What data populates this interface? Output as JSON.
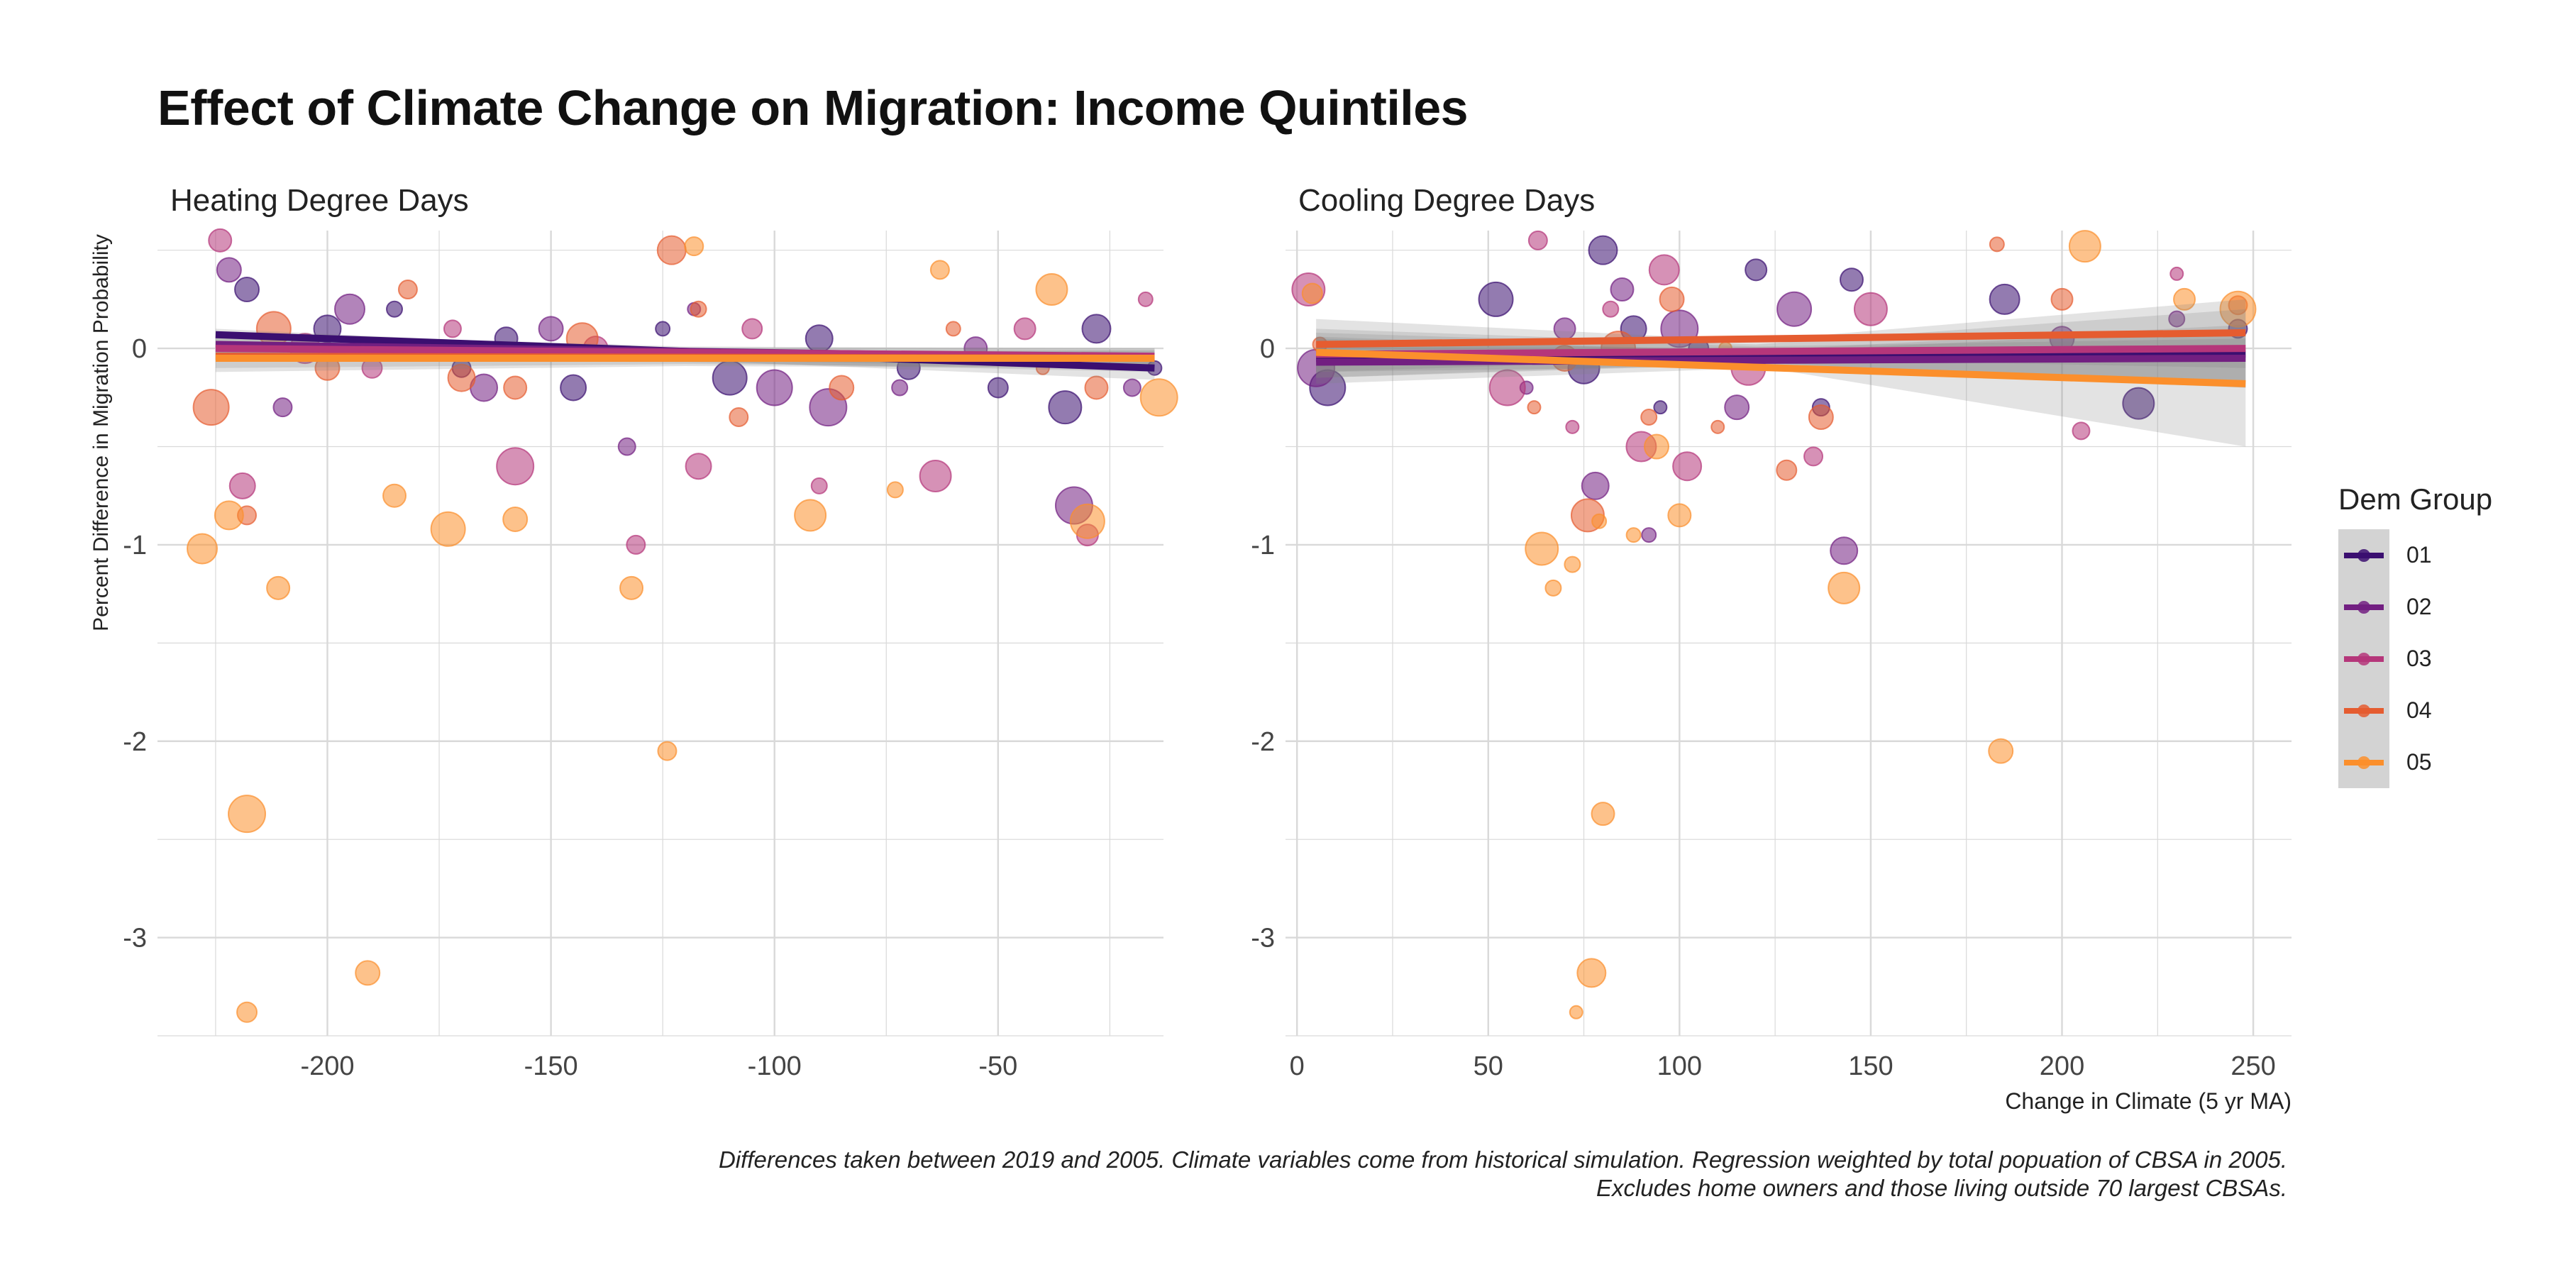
{
  "title": "Effect of Climate Change on Migration: Income Quintiles",
  "caption_lines": [
    "Differences taken between 2019 and 2005. Climate variables come from historical simulation. Regression weighted by total popuation of CBSA in 2005.",
    "Excludes home owners and those living outside 70 largest CBSAs."
  ],
  "y_axis_label": "Percent Difference in Migration Probability",
  "x_axis_label": "Change in Climate (5 yr MA)",
  "legend": {
    "title": "Dem Group",
    "items": [
      {
        "label": "01",
        "color": "#3b0f70"
      },
      {
        "label": "02",
        "color": "#721f81"
      },
      {
        "label": "03",
        "color": "#b5367a"
      },
      {
        "label": "04",
        "color": "#e55c30"
      },
      {
        "label": "05",
        "color": "#fb8f2c"
      }
    ]
  },
  "chart_data": [
    {
      "type": "scatter",
      "title": "Heating Degree Days",
      "xlim": [
        -238,
        -13
      ],
      "ylim": [
        -3.5,
        0.6
      ],
      "x_ticks": [
        -200,
        -150,
        -100,
        -50
      ],
      "y_ticks": [
        0,
        -1,
        -2,
        -3
      ],
      "grid": true,
      "series": [
        {
          "name": "01",
          "color": "#3b0f70",
          "fit": [
            [
              -225,
              0.07
            ],
            [
              -15,
              -0.1
            ]
          ],
          "band": [
            [
              -225,
              0.1,
              -0.04
            ],
            [
              -120,
              -0.01,
              -0.06
            ],
            [
              -15,
              -0.06,
              -0.16
            ]
          ],
          "points": [
            [
              -218,
              0.3
            ],
            [
              -200,
              0.1
            ],
            [
              -185,
              0.2
            ],
            [
              -170,
              -0.1
            ],
            [
              -160,
              0.05
            ],
            [
              -145,
              -0.2
            ],
            [
              -125,
              0.1
            ],
            [
              -110,
              -0.15
            ],
            [
              -90,
              0.05
            ],
            [
              -70,
              -0.1
            ],
            [
              -50,
              -0.2
            ],
            [
              -35,
              -0.3
            ],
            [
              -28,
              0.1
            ],
            [
              -15,
              -0.1
            ]
          ]
        },
        {
          "name": "02",
          "color": "#721f81",
          "fit": [
            [
              -225,
              0.02
            ],
            [
              -15,
              -0.05
            ]
          ],
          "band": [
            [
              -225,
              0.08,
              -0.06
            ],
            [
              -120,
              0.01,
              -0.07
            ],
            [
              -15,
              0.0,
              -0.12
            ]
          ],
          "points": [
            [
              -222,
              0.4
            ],
            [
              -210,
              -0.3
            ],
            [
              -195,
              0.2
            ],
            [
              -180,
              0.0
            ],
            [
              -165,
              -0.2
            ],
            [
              -150,
              0.1
            ],
            [
              -133,
              -0.5
            ],
            [
              -118,
              0.2
            ],
            [
              -100,
              -0.2
            ],
            [
              -88,
              -0.3
            ],
            [
              -72,
              -0.2
            ],
            [
              -55,
              0.0
            ],
            [
              -33,
              -0.8
            ],
            [
              -20,
              -0.2
            ]
          ]
        },
        {
          "name": "03",
          "color": "#b5367a",
          "fit": [
            [
              -225,
              0.0
            ],
            [
              -15,
              -0.04
            ]
          ],
          "band": [
            [
              -225,
              0.06,
              -0.06
            ],
            [
              -120,
              0.0,
              -0.06
            ],
            [
              -15,
              0.0,
              -0.1
            ]
          ],
          "points": [
            [
              -224,
              0.55
            ],
            [
              -219,
              -0.7
            ],
            [
              -205,
              0.0
            ],
            [
              -190,
              -0.1
            ],
            [
              -172,
              0.1
            ],
            [
              -158,
              -0.6
            ],
            [
              -140,
              0.0
            ],
            [
              -131,
              -1.0
            ],
            [
              -117,
              -0.6
            ],
            [
              -105,
              0.1
            ],
            [
              -90,
              -0.7
            ],
            [
              -64,
              -0.65
            ],
            [
              -44,
              0.1
            ],
            [
              -30,
              -0.95
            ],
            [
              -17,
              0.25
            ]
          ]
        },
        {
          "name": "04",
          "color": "#e55c30",
          "fit": [
            [
              -225,
              -0.04
            ],
            [
              -15,
              -0.05
            ]
          ],
          "band": [
            [
              -225,
              0.02,
              -0.1
            ],
            [
              -120,
              -0.01,
              -0.08
            ],
            [
              -15,
              -0.01,
              -0.1
            ]
          ],
          "points": [
            [
              -226,
              -0.3
            ],
            [
              -218,
              -0.85
            ],
            [
              -212,
              0.1
            ],
            [
              -200,
              -0.1
            ],
            [
              -182,
              0.3
            ],
            [
              -170,
              -0.15
            ],
            [
              -158,
              -0.2
            ],
            [
              -143,
              0.05
            ],
            [
              -123,
              0.5
            ],
            [
              -117,
              0.2
            ],
            [
              -108,
              -0.35
            ],
            [
              -85,
              -0.2
            ],
            [
              -60,
              0.1
            ],
            [
              -40,
              -0.1
            ],
            [
              -28,
              -0.2
            ]
          ]
        },
        {
          "name": "05",
          "color": "#fb8f2c",
          "fit": [
            [
              -225,
              -0.05
            ],
            [
              -15,
              -0.05
            ]
          ],
          "band": [
            [
              -225,
              0.01,
              -0.12
            ],
            [
              -120,
              -0.02,
              -0.09
            ],
            [
              -15,
              -0.01,
              -0.1
            ]
          ],
          "points": [
            [
              -228,
              -1.02
            ],
            [
              -222,
              -0.85
            ],
            [
              -218,
              -2.37
            ],
            [
              -218,
              -3.38
            ],
            [
              -211,
              -1.22
            ],
            [
              -191,
              -3.18
            ],
            [
              -185,
              -0.75
            ],
            [
              -173,
              -0.92
            ],
            [
              -158,
              -0.87
            ],
            [
              -132,
              -1.22
            ],
            [
              -124,
              -2.05
            ],
            [
              -118,
              0.52
            ],
            [
              -92,
              -0.85
            ],
            [
              -73,
              -0.72
            ],
            [
              -63,
              0.4
            ],
            [
              -38,
              0.3
            ],
            [
              -30,
              -0.88
            ],
            [
              -14,
              -0.25
            ]
          ]
        }
      ]
    },
    {
      "type": "scatter",
      "title": "Cooling Degree Days",
      "xlim": [
        -3,
        260
      ],
      "ylim": [
        -3.5,
        0.6
      ],
      "x_ticks": [
        0,
        50,
        100,
        150,
        200,
        250
      ],
      "y_ticks": [
        0,
        -1,
        -2,
        -3
      ],
      "grid": true,
      "series": [
        {
          "name": "01",
          "color": "#3b0f70",
          "fit": [
            [
              5,
              -0.05
            ],
            [
              248,
              -0.03
            ]
          ],
          "band": [
            [
              5,
              0.05,
              -0.15
            ],
            [
              120,
              -0.01,
              -0.08
            ],
            [
              248,
              0.12,
              -0.18
            ]
          ],
          "points": [
            [
              8,
              -0.2
            ],
            [
              52,
              0.25
            ],
            [
              75,
              -0.1
            ],
            [
              80,
              0.5
            ],
            [
              88,
              0.1
            ],
            [
              95,
              -0.3
            ],
            [
              105,
              0.0
            ],
            [
              120,
              0.4
            ],
            [
              137,
              -0.3
            ],
            [
              145,
              0.35
            ],
            [
              185,
              0.25
            ],
            [
              220,
              -0.28
            ],
            [
              246,
              0.1
            ]
          ]
        },
        {
          "name": "02",
          "color": "#721f81",
          "fit": [
            [
              5,
              -0.07
            ],
            [
              248,
              -0.05
            ]
          ],
          "band": [
            [
              5,
              0.06,
              -0.18
            ],
            [
              120,
              -0.02,
              -0.1
            ],
            [
              248,
              0.1,
              -0.2
            ]
          ],
          "points": [
            [
              5,
              -0.1
            ],
            [
              60,
              -0.2
            ],
            [
              70,
              0.1
            ],
            [
              78,
              -0.7
            ],
            [
              85,
              0.3
            ],
            [
              92,
              -0.95
            ],
            [
              100,
              0.1
            ],
            [
              115,
              -0.3
            ],
            [
              130,
              0.2
            ],
            [
              143,
              -1.03
            ],
            [
              200,
              0.05
            ],
            [
              230,
              0.15
            ]
          ]
        },
        {
          "name": "03",
          "color": "#b5367a",
          "fit": [
            [
              5,
              -0.03
            ],
            [
              248,
              0.0
            ]
          ],
          "band": [
            [
              5,
              0.1,
              -0.15
            ],
            [
              120,
              0.02,
              -0.07
            ],
            [
              248,
              0.2,
              -0.2
            ]
          ],
          "points": [
            [
              3,
              0.3
            ],
            [
              55,
              -0.2
            ],
            [
              63,
              0.55
            ],
            [
              72,
              -0.4
            ],
            [
              82,
              0.2
            ],
            [
              90,
              -0.5
            ],
            [
              96,
              0.4
            ],
            [
              102,
              -0.6
            ],
            [
              118,
              -0.1
            ],
            [
              135,
              -0.55
            ],
            [
              150,
              0.2
            ],
            [
              205,
              -0.42
            ],
            [
              230,
              0.38
            ]
          ]
        },
        {
          "name": "04",
          "color": "#e55c30",
          "fit": [
            [
              5,
              0.02
            ],
            [
              248,
              0.08
            ]
          ],
          "band": [
            [
              5,
              0.15,
              -0.12
            ],
            [
              120,
              0.04,
              -0.05
            ],
            [
              248,
              0.25,
              -0.1
            ]
          ],
          "points": [
            [
              6,
              0.02
            ],
            [
              62,
              -0.3
            ],
            [
              70,
              -0.05
            ],
            [
              76,
              -0.85
            ],
            [
              84,
              0.0
            ],
            [
              92,
              -0.35
            ],
            [
              98,
              0.25
            ],
            [
              110,
              -0.4
            ],
            [
              128,
              -0.62
            ],
            [
              137,
              -0.35
            ],
            [
              183,
              0.53
            ],
            [
              200,
              0.25
            ],
            [
              246,
              0.22
            ]
          ]
        },
        {
          "name": "05",
          "color": "#fb8f2c",
          "fit": [
            [
              5,
              -0.02
            ],
            [
              248,
              -0.18
            ]
          ],
          "band": [
            [
              5,
              0.08,
              -0.12
            ],
            [
              120,
              0.01,
              -0.09
            ],
            [
              248,
              0.05,
              -0.5
            ]
          ],
          "points": [
            [
              4,
              0.28
            ],
            [
              64,
              -1.02
            ],
            [
              67,
              -1.22
            ],
            [
              72,
              -1.1
            ],
            [
              73,
              -3.38
            ],
            [
              77,
              -3.18
            ],
            [
              79,
              -0.88
            ],
            [
              80,
              -2.37
            ],
            [
              88,
              -0.95
            ],
            [
              94,
              -0.5
            ],
            [
              100,
              -0.85
            ],
            [
              112,
              0.0
            ],
            [
              143,
              -1.22
            ],
            [
              184,
              -2.05
            ],
            [
              206,
              0.52
            ],
            [
              232,
              0.25
            ],
            [
              246,
              0.2
            ]
          ]
        }
      ]
    }
  ]
}
